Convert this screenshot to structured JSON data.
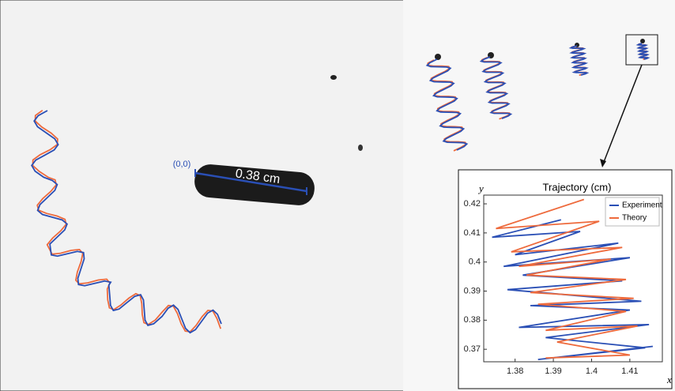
{
  "annotations": {
    "origin": "(0,0)",
    "length": "0.38 cm"
  },
  "chart_data": {
    "type": "line",
    "title": "Trajectory (cm)",
    "x_label": "x",
    "y_label": "y",
    "xlim": [
      1.3718,
      1.4185
    ],
    "ylim": [
      0.3657,
      0.423
    ],
    "xticks": [
      1.38,
      1.39,
      1.4,
      1.41
    ],
    "yticks": [
      0.37,
      0.38,
      0.39,
      0.4,
      0.41,
      0.42
    ],
    "legend": "upper right",
    "series": [
      {
        "name": "Experiment",
        "color": "#2a4fb5",
        "x": [
          1.392,
          1.374,
          1.397,
          1.38,
          1.407,
          1.377,
          1.41,
          1.382,
          1.408,
          1.378,
          1.413,
          1.384,
          1.41,
          1.381,
          1.415,
          1.388,
          1.414,
          1.386,
          1.416
        ],
        "values": [
          0.4145,
          0.4085,
          0.4105,
          0.4025,
          0.4065,
          0.3985,
          0.4015,
          0.3955,
          0.3935,
          0.3905,
          0.3865,
          0.385,
          0.3835,
          0.3775,
          0.3785,
          0.374,
          0.3705,
          0.3665,
          0.371
        ]
      },
      {
        "name": "Theory",
        "color": "#ee6a3c",
        "x": [
          1.398,
          1.375,
          1.402,
          1.379,
          1.408,
          1.381,
          1.405,
          1.383,
          1.409,
          1.384,
          1.411,
          1.386,
          1.409,
          1.388,
          1.412,
          1.391,
          1.41,
          1.388
        ],
        "values": [
          0.4215,
          0.4115,
          0.414,
          0.4035,
          0.405,
          0.3985,
          0.401,
          0.3955,
          0.394,
          0.3895,
          0.3875,
          0.3855,
          0.383,
          0.3765,
          0.378,
          0.3725,
          0.368,
          0.367
        ]
      }
    ]
  }
}
